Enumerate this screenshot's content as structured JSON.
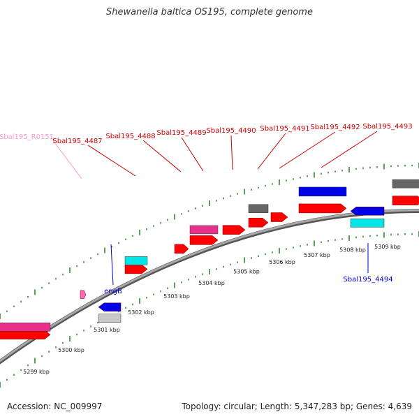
{
  "title": "Shewanella baltica OS195, complete genome",
  "footer": {
    "accession": "Accession: NC_009997",
    "summary": "Topology: circular; Length: 5,347,283 bp; Genes: 4,639"
  },
  "colors": {
    "backbone": "#8c8c8c",
    "tick": "#2e8b2e",
    "cds": "#ff0000",
    "rna": "#ff69b4",
    "pink_feature": "#e6308c",
    "gray_feature": "#666666",
    "lightgray_feature": "#c8c8c8",
    "blue_feature": "#0000e6",
    "cyan_feature": "#00e6e6",
    "label_red": "#cc0000",
    "label_blue": "#0000cc",
    "label_pink": "#ff99cc"
  },
  "scale_labels": [
    "5299 kbp",
    "5300 kbp",
    "5301 kbp",
    "5302 kbp",
    "5303 kbp",
    "5304 kbp",
    "5305 kbp",
    "5306 kbp",
    "5307 kbp",
    "5308 kbp",
    "5309 kbp"
  ],
  "gene_labels": [
    {
      "text": "Sbal195_R0151",
      "kind": "rna"
    },
    {
      "text": "Sbal195_4487",
      "kind": "cds"
    },
    {
      "text": "Sbal195_4488",
      "kind": "cds"
    },
    {
      "text": "Sbal195_4489",
      "kind": "cds"
    },
    {
      "text": "Sbal195_4490",
      "kind": "cds"
    },
    {
      "text": "Sbal195_4491",
      "kind": "cds"
    },
    {
      "text": "Sbal195_4492",
      "kind": "cds"
    },
    {
      "text": "Sbal195_4493",
      "kind": "cds"
    },
    {
      "text": "engB",
      "kind": "reverse"
    },
    {
      "text": "Sbal195_4494",
      "kind": "reverse"
    }
  ]
}
